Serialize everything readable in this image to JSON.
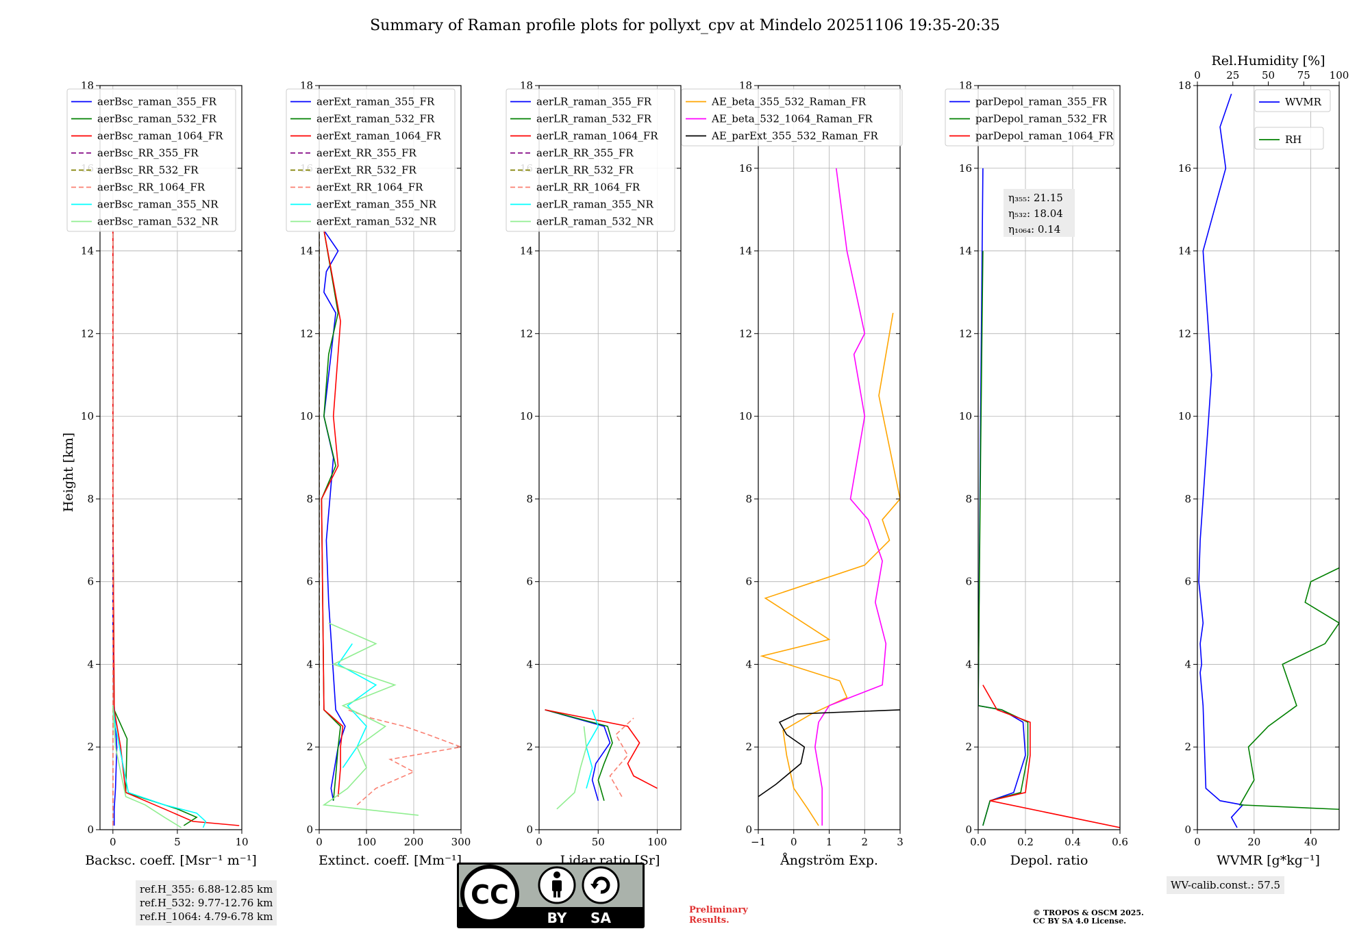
{
  "chart_data": {
    "title": "Summary of Raman profile plots for pollyxt_cpv at Mindelo 20251106 19:35-20:35",
    "ylabel": "Height [km]",
    "ylim": [
      0,
      18
    ],
    "yticks": [
      "0",
      "2",
      "4",
      "6",
      "8",
      "10",
      "12",
      "14",
      "16",
      "18"
    ],
    "grid": true,
    "panels": [
      {
        "type": "line",
        "xlabel": "Backsc. coeff. [Msr⁻¹ m⁻¹]",
        "xlim": [
          -1,
          10
        ],
        "xticks": [
          0,
          5,
          10
        ],
        "xticklabels": [
          "0",
          "5",
          "10"
        ],
        "legend": "top-right",
        "series": [
          {
            "name": "aerBsc_raman_355_FR",
            "color": "#0000ff",
            "style": "solid",
            "x": [
              0.1,
              0.1,
              0.2,
              0.3,
              0.1,
              0.0,
              0.0,
              0.0
            ],
            "y": [
              0.1,
              0.5,
              1.0,
              2.0,
              3.0,
              5.0,
              10.0,
              14.5
            ]
          },
          {
            "name": "aerBsc_raman_532_FR",
            "color": "#008000",
            "style": "solid",
            "x": [
              5.5,
              6.5,
              5.0,
              1.0,
              1.1,
              0.1,
              0.0,
              0.0
            ],
            "y": [
              0.1,
              0.3,
              0.5,
              0.9,
              2.2,
              2.9,
              8.0,
              14.5
            ]
          },
          {
            "name": "aerBsc_raman_1064_FR",
            "color": "#ff0000",
            "style": "solid",
            "x": [
              9.8,
              6.2,
              4.0,
              1.0,
              0.6,
              0.1,
              0.0,
              0.0
            ],
            "y": [
              0.1,
              0.2,
              0.5,
              0.9,
              2.0,
              2.9,
              8.0,
              14.5
            ]
          },
          {
            "name": "aerBsc_RR_355_FR",
            "color": "#800080",
            "style": "dashed",
            "x": [
              0.0,
              0.0,
              0.0,
              0.0
            ],
            "y": [
              0.1,
              3.0,
              8.0,
              14.5
            ]
          },
          {
            "name": "aerBsc_RR_532_FR",
            "color": "#808000",
            "style": "dashed",
            "x": [
              0.0,
              0.0,
              0.0,
              0.0
            ],
            "y": [
              0.1,
              3.0,
              8.0,
              14.5
            ]
          },
          {
            "name": "aerBsc_RR_1064_FR",
            "color": "#fa8072",
            "style": "dashed",
            "x": [
              0.0,
              0.0,
              0.0
            ],
            "y": [
              0.1,
              3.0,
              14.5
            ]
          },
          {
            "name": "aerBsc_raman_355_NR",
            "color": "#00ffff",
            "style": "solid",
            "x": [
              7.0,
              7.2,
              6.5,
              4.0,
              1.2,
              0.2,
              0.0
            ],
            "y": [
              0.05,
              0.2,
              0.4,
              0.6,
              0.9,
              2.5,
              3.0
            ]
          },
          {
            "name": "aerBsc_raman_532_NR",
            "color": "#90ee90",
            "style": "solid",
            "x": [
              5.3,
              4.0,
              2.5,
              1.0,
              0.2,
              0.0
            ],
            "y": [
              0.05,
              0.3,
              0.6,
              0.8,
              2.0,
              3.0
            ]
          }
        ]
      },
      {
        "type": "line",
        "xlabel": "Extinct. coeff. [Mm⁻¹]",
        "xlim": [
          0,
          300
        ],
        "xticks": [
          0,
          100,
          200,
          300
        ],
        "xticklabels": [
          "0",
          "100",
          "200",
          "300"
        ],
        "legend": "top-right",
        "series": [
          {
            "name": "aerExt_raman_355_FR",
            "color": "#0000ff",
            "style": "solid",
            "x": [
              30,
              25,
              40,
              55,
              35,
              20,
              15,
              30,
              10,
              25,
              35,
              10,
              15,
              40,
              10
            ],
            "y": [
              0.7,
              1.0,
              2.0,
              2.5,
              2.9,
              5.5,
              7.0,
              9.0,
              10.0,
              11.5,
              12.5,
              13.0,
              13.5,
              14.0,
              14.5
            ]
          },
          {
            "name": "aerExt_raman_532_FR",
            "color": "#008000",
            "style": "solid",
            "x": [
              30,
              35,
              40,
              45,
              10,
              5,
              35,
              10,
              20,
              40,
              10
            ],
            "y": [
              0.7,
              1.3,
              2.0,
              2.5,
              2.9,
              8.0,
              8.8,
              10.0,
              11.5,
              12.5,
              14.5
            ]
          },
          {
            "name": "aerExt_raman_1064_FR",
            "color": "#ff0000",
            "style": "solid",
            "x": [
              40,
              45,
              45,
              50,
              10,
              5,
              40,
              30,
              45,
              10
            ],
            "y": [
              0.8,
              1.5,
              2.0,
              2.5,
              2.9,
              8.0,
              8.8,
              10.0,
              12.3,
              14.5
            ]
          },
          {
            "name": "aerExt_RR_355_FR",
            "color": "#800080",
            "style": "dashed",
            "x": [
              0,
              0
            ],
            "y": [
              3.0,
              14.5
            ]
          },
          {
            "name": "aerExt_RR_532_FR",
            "color": "#808000",
            "style": "dashed",
            "x": [
              0,
              0
            ],
            "y": [
              3.0,
              14.5
            ]
          },
          {
            "name": "aerExt_RR_1064_FR",
            "color": "#fa8072",
            "style": "dashed",
            "x": [
              80,
              120,
              200,
              150,
              300,
              230,
              180,
              110,
              60
            ],
            "y": [
              0.6,
              1.0,
              1.4,
              1.7,
              2.0,
              2.3,
              2.5,
              2.7,
              2.9
            ]
          },
          {
            "name": "aerExt_raman_355_NR",
            "color": "#00ffff",
            "style": "solid",
            "x": [
              50,
              80,
              100,
              60,
              120,
              40,
              70
            ],
            "y": [
              1.5,
              2.0,
              2.5,
              3.0,
              3.5,
              4.0,
              4.5
            ]
          },
          {
            "name": "aerExt_raman_532_NR",
            "color": "#90ee90",
            "style": "solid",
            "x": [
              210,
              10,
              60,
              100,
              80,
              140,
              50,
              160,
              30,
              120,
              20
            ],
            "y": [
              0.35,
              0.6,
              1.0,
              1.5,
              2.0,
              2.5,
              3.0,
              3.5,
              4.0,
              4.5,
              5.0
            ]
          }
        ]
      },
      {
        "type": "line",
        "xlabel": "Lidar ratio [Sr]",
        "xlim": [
          0,
          120
        ],
        "xticks": [
          0,
          50,
          100
        ],
        "xticklabels": [
          "0",
          "50",
          "100"
        ],
        "legend": "top-right",
        "series": [
          {
            "name": "aerLR_raman_355_FR",
            "color": "#0000ff",
            "style": "solid",
            "x": [
              50,
              45,
              48,
              60,
              55,
              5
            ],
            "y": [
              0.7,
              1.2,
              1.6,
              2.1,
              2.5,
              2.9
            ]
          },
          {
            "name": "aerLR_raman_532_FR",
            "color": "#008000",
            "style": "solid",
            "x": [
              55,
              50,
              55,
              62,
              58,
              5
            ],
            "y": [
              0.7,
              1.2,
              1.6,
              2.1,
              2.5,
              2.9
            ]
          },
          {
            "name": "aerLR_raman_1064_FR",
            "color": "#ff0000",
            "style": "solid",
            "x": [
              100,
              80,
              75,
              85,
              75,
              5
            ],
            "y": [
              1.0,
              1.3,
              1.6,
              2.1,
              2.5,
              2.9
            ]
          },
          {
            "name": "aerLR_RR_355_FR",
            "color": "#800080",
            "style": "dashed",
            "x": [],
            "y": []
          },
          {
            "name": "aerLR_RR_532_FR",
            "color": "#808000",
            "style": "dashed",
            "x": [],
            "y": []
          },
          {
            "name": "aerLR_RR_1064_FR",
            "color": "#fa8072",
            "style": "dashed",
            "x": [
              70,
              60,
              75,
              65,
              80
            ],
            "y": [
              0.8,
              1.3,
              1.8,
              2.3,
              2.7
            ]
          },
          {
            "name": "aerLR_raman_355_NR",
            "color": "#00ffff",
            "style": "solid",
            "x": [
              40,
              45,
              40,
              50,
              45
            ],
            "y": [
              1.0,
              1.5,
              2.0,
              2.5,
              2.9
            ]
          },
          {
            "name": "aerLR_raman_532_NR",
            "color": "#90ee90",
            "style": "solid",
            "x": [
              15,
              30,
              35,
              40,
              38
            ],
            "y": [
              0.5,
              0.9,
              1.5,
              2.0,
              2.5
            ]
          }
        ]
      },
      {
        "type": "line",
        "xlabel": "Ångström Exp.",
        "xlim": [
          -1,
          3
        ],
        "xticks": [
          -1,
          0,
          1,
          2,
          3
        ],
        "xticklabels": [
          "−1",
          "0",
          "1",
          "2",
          "3"
        ],
        "legend": "top-right",
        "series": [
          {
            "name": "AE_beta_355_532_Raman_FR",
            "color": "#ffa500",
            "style": "solid",
            "x": [
              0.7,
              0.4,
              0.0,
              -0.2,
              -0.3,
              0.5,
              1.5,
              1.3,
              -0.9,
              1.0,
              -0.8,
              2.0,
              2.7,
              2.5,
              3.0,
              2.4,
              2.8
            ],
            "y": [
              0.1,
              0.5,
              1.0,
              1.8,
              2.4,
              2.8,
              3.2,
              3.6,
              4.2,
              4.6,
              5.6,
              6.4,
              7.0,
              7.5,
              8.0,
              10.5,
              12.5
            ]
          },
          {
            "name": "AE_beta_532_1064_Raman_FR",
            "color": "#ff00ff",
            "style": "solid",
            "x": [
              0.8,
              0.8,
              0.6,
              0.7,
              1.0,
              2.5,
              2.6,
              2.3,
              2.5,
              2.1,
              1.6,
              2.0,
              1.8,
              1.7,
              2.0,
              1.5,
              1.2
            ],
            "y": [
              0.1,
              1.0,
              2.0,
              2.6,
              3.0,
              3.5,
              4.5,
              5.5,
              6.5,
              7.5,
              8.0,
              10.0,
              11.0,
              11.5,
              12.0,
              14.0,
              16.0
            ]
          },
          {
            "name": "AE_parExt_355_532_Raman_FR",
            "color": "#000000",
            "style": "solid",
            "x": [
              -1.0,
              -0.5,
              0.2,
              0.3,
              -0.2,
              -0.4,
              0.1,
              3.0
            ],
            "y": [
              0.8,
              1.1,
              1.6,
              2.0,
              2.3,
              2.6,
              2.8,
              2.9
            ]
          }
        ]
      },
      {
        "type": "line",
        "xlabel": "Depol. ratio",
        "xlim": [
          0,
          0.6
        ],
        "xticks": [
          0,
          0.2,
          0.4,
          0.6
        ],
        "xticklabels": [
          "0.0",
          "0.2",
          "0.4",
          "0.6"
        ],
        "legend": "top-right",
        "series": [
          {
            "name": "parDepol_raman_355_FR",
            "color": "#0000ff",
            "style": "solid",
            "x": [
              0.02,
              0.05,
              0.15,
              0.2,
              0.19,
              0.1,
              0.0,
              0.01,
              0.02
            ],
            "y": [
              0.1,
              0.7,
              0.9,
              1.8,
              2.6,
              2.9,
              3.0,
              10.0,
              16.0
            ]
          },
          {
            "name": "parDepol_raman_532_FR",
            "color": "#008000",
            "style": "solid",
            "x": [
              0.02,
              0.05,
              0.18,
              0.21,
              0.21,
              0.1,
              0.0,
              0.01,
              0.02
            ],
            "y": [
              0.1,
              0.7,
              0.9,
              1.8,
              2.6,
              2.9,
              3.0,
              9.0,
              14.0
            ]
          },
          {
            "name": "parDepol_raman_1064_FR",
            "color": "#ff0000",
            "style": "solid",
            "x": [
              0.6,
              0.05,
              0.2,
              0.22,
              0.22,
              0.08,
              0.02
            ],
            "y": [
              0.05,
              0.7,
              0.9,
              1.8,
              2.6,
              2.9,
              3.5
            ]
          }
        ],
        "annotation": {
          "lines": [
            "η₃₅₅: 21.15",
            "η₅₃₂: 18.04",
            "η₁₀₆₄: 0.14"
          ]
        }
      },
      {
        "type": "line",
        "xlabel": "WVMR [g*kg⁻¹]",
        "xlim": [
          0,
          50
        ],
        "xticks": [
          0,
          20,
          40
        ],
        "xticklabels": [
          "0",
          "20",
          "40"
        ],
        "top_axis": {
          "label": "Rel.Humidity [%]",
          "lim": [
            0,
            100
          ],
          "ticks": [
            "0",
            "25",
            "50",
            "75",
            "100"
          ]
        },
        "legend": "top-right",
        "series": [
          {
            "name": "WVMR",
            "color": "#0000ff",
            "style": "solid",
            "x": [
              14,
              12,
              16,
              8,
              3,
              2.5,
              2,
              1,
              1.5,
              1,
              2,
              0.5,
              1,
              2,
              3,
              4,
              5,
              4,
              3,
              2,
              6,
              10,
              8,
              12
            ],
            "y": [
              0.05,
              0.3,
              0.6,
              0.7,
              1.0,
              2.0,
              3.0,
              3.8,
              4.0,
              4.5,
              5.0,
              6.0,
              7.0,
              8.0,
              9.0,
              10.0,
              11.0,
              12.0,
              13.0,
              14.0,
              15.0,
              16.0,
              17.0,
              17.8
            ]
          },
          {
            "name": "RH",
            "color": "#008000",
            "style": "solid",
            "x": [
              72,
              65,
              80,
              15,
              20,
              18,
              25,
              35,
              30,
              45,
              50,
              38,
              40,
              55,
              60,
              75,
              85,
              95,
              90,
              100,
              98
            ],
            "y": [
              0.05,
              0.2,
              0.4,
              0.6,
              1.2,
              2.0,
              2.5,
              3.0,
              4.0,
              4.5,
              5.0,
              5.5,
              6.0,
              6.5,
              7.0,
              7.5,
              8.0,
              8.5,
              9.0,
              9.5,
              9.9
            ]
          }
        ],
        "annotation": {
          "lines": [
            "WV-calib.const.: 57.5"
          ]
        }
      }
    ]
  },
  "footer": {
    "refheights": [
      "ref.H_355: 6.88-12.85 km",
      "ref.H_532: 9.77-12.76 km",
      "ref.H_1064: 4.79-6.78 km"
    ],
    "preliminary": [
      "Preliminary",
      "Results."
    ],
    "copyright": [
      "© TROPOS & OSCM 2025.",
      "CC BY SA 4.0 License."
    ],
    "license_badge": {
      "letters": "CC",
      "labels": [
        "BY",
        "SA"
      ]
    }
  }
}
